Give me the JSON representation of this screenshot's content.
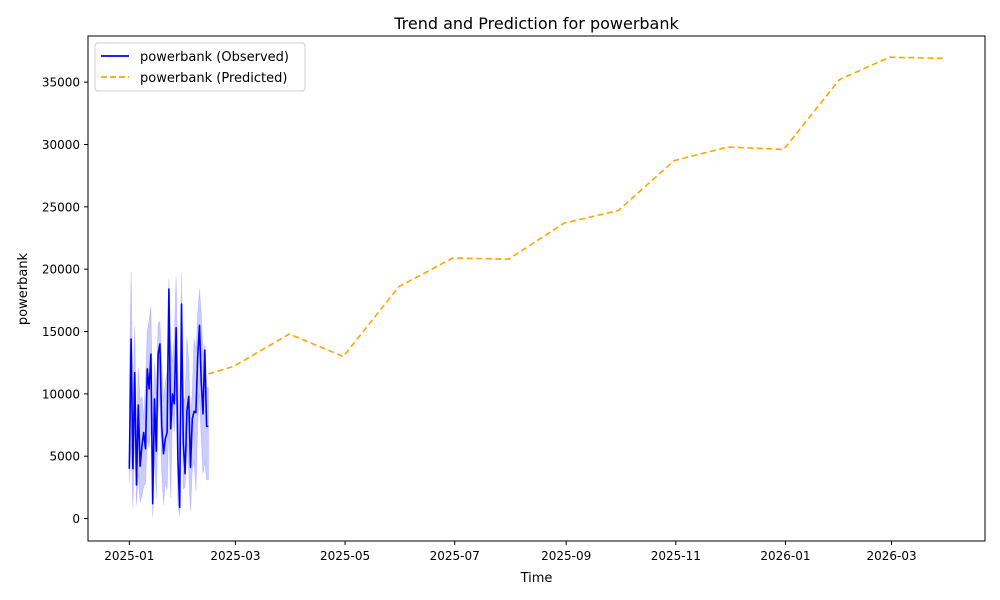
{
  "chart_data": {
    "type": "line",
    "title": "Trend and Prediction for powerbank",
    "xlabel": "Time",
    "ylabel": "powerbank",
    "xlim": [
      "2024-12-09",
      "2026-04-22"
    ],
    "ylim": [
      -1800,
      38700
    ],
    "x_ticks": [
      "2025-01-01",
      "2025-03-01",
      "2025-05-01",
      "2025-07-01",
      "2025-09-01",
      "2025-11-01",
      "2026-01-01",
      "2026-03-01"
    ],
    "x_tick_labels": [
      "2025-01",
      "2025-03",
      "2025-05",
      "2025-07",
      "2025-09",
      "2025-11",
      "2026-01",
      "2026-03"
    ],
    "y_ticks": [
      0,
      5000,
      10000,
      15000,
      20000,
      25000,
      30000,
      35000
    ],
    "y_tick_labels": [
      "0",
      "5000",
      "10000",
      "15000",
      "20000",
      "25000",
      "30000",
      "35000"
    ],
    "grid": false,
    "legend_position": "top-left",
    "series": [
      {
        "name": "powerbank (Observed)",
        "style": "solid",
        "color": "#0000ff",
        "x": [
          "2025-01-01",
          "2025-01-02",
          "2025-01-03",
          "2025-01-04",
          "2025-01-05",
          "2025-01-06",
          "2025-01-07",
          "2025-01-08",
          "2025-01-09",
          "2025-01-10",
          "2025-01-11",
          "2025-01-12",
          "2025-01-13",
          "2025-01-14",
          "2025-01-15",
          "2025-01-16",
          "2025-01-17",
          "2025-01-18",
          "2025-01-19",
          "2025-01-20",
          "2025-01-21",
          "2025-01-22",
          "2025-01-23",
          "2025-01-24",
          "2025-01-25",
          "2025-01-26",
          "2025-01-27",
          "2025-01-28",
          "2025-01-29",
          "2025-01-30",
          "2025-01-31",
          "2025-02-01",
          "2025-02-02",
          "2025-02-03",
          "2025-02-04",
          "2025-02-05",
          "2025-02-06",
          "2025-02-07",
          "2025-02-08",
          "2025-02-09",
          "2025-02-10",
          "2025-02-11",
          "2025-02-12",
          "2025-02-13",
          "2025-02-14"
        ],
        "values": [
          4000,
          14400,
          4000,
          11700,
          2700,
          9100,
          4200,
          5800,
          6900,
          5600,
          12000,
          10400,
          13200,
          1200,
          9600,
          5400,
          13200,
          14000,
          7500,
          5200,
          6400,
          6900,
          18400,
          7200,
          10000,
          9200,
          15300,
          4800,
          900,
          17200,
          6000,
          3600,
          8600,
          9800,
          4100,
          8000,
          8600,
          8500,
          13000,
          15500,
          11000,
          8400,
          13500,
          7400,
          7400
        ],
        "band_upper": [
          11200,
          19800,
          9500,
          15400,
          6700,
          12100,
          9400,
          9800,
          8000,
          11000,
          15000,
          15900,
          17000,
          7800,
          12500,
          10000,
          15600,
          15800,
          12400,
          9400,
          11000,
          11800,
          19200,
          14000,
          12500,
          14700,
          19400,
          11800,
          5000,
          19700,
          9800,
          9400,
          14600,
          12600,
          8000,
          10200,
          14400,
          13300,
          16400,
          18400,
          16500,
          13000,
          14000,
          10500,
          10500
        ],
        "band_lower": [
          2800,
          6000,
          800,
          7000,
          1100,
          3600,
          1300,
          1800,
          2600,
          2800,
          6500,
          5700,
          7400,
          100,
          5200,
          1600,
          8500,
          10000,
          3800,
          1100,
          3000,
          2300,
          7700,
          1700,
          8500,
          7000,
          11000,
          1200,
          200,
          11200,
          2400,
          2500,
          6000,
          3800,
          600,
          4000,
          4600,
          2200,
          7600,
          10000,
          6500,
          3600,
          4600,
          3100,
          3100
        ]
      },
      {
        "name": "powerbank (Predicted)",
        "style": "dashed",
        "color": "#ffa500",
        "x": [
          "2025-02-14",
          "2025-02-28",
          "2025-03-31",
          "2025-04-30",
          "2025-05-31",
          "2025-06-30",
          "2025-07-31",
          "2025-08-31",
          "2025-09-30",
          "2025-10-31",
          "2025-11-30",
          "2025-12-31",
          "2026-01-31",
          "2026-02-28",
          "2026-03-31"
        ],
        "values": [
          11600,
          12200,
          14800,
          13000,
          18600,
          20900,
          20800,
          23700,
          24700,
          28700,
          29800,
          29600,
          35200,
          37000,
          36900
        ]
      }
    ]
  }
}
